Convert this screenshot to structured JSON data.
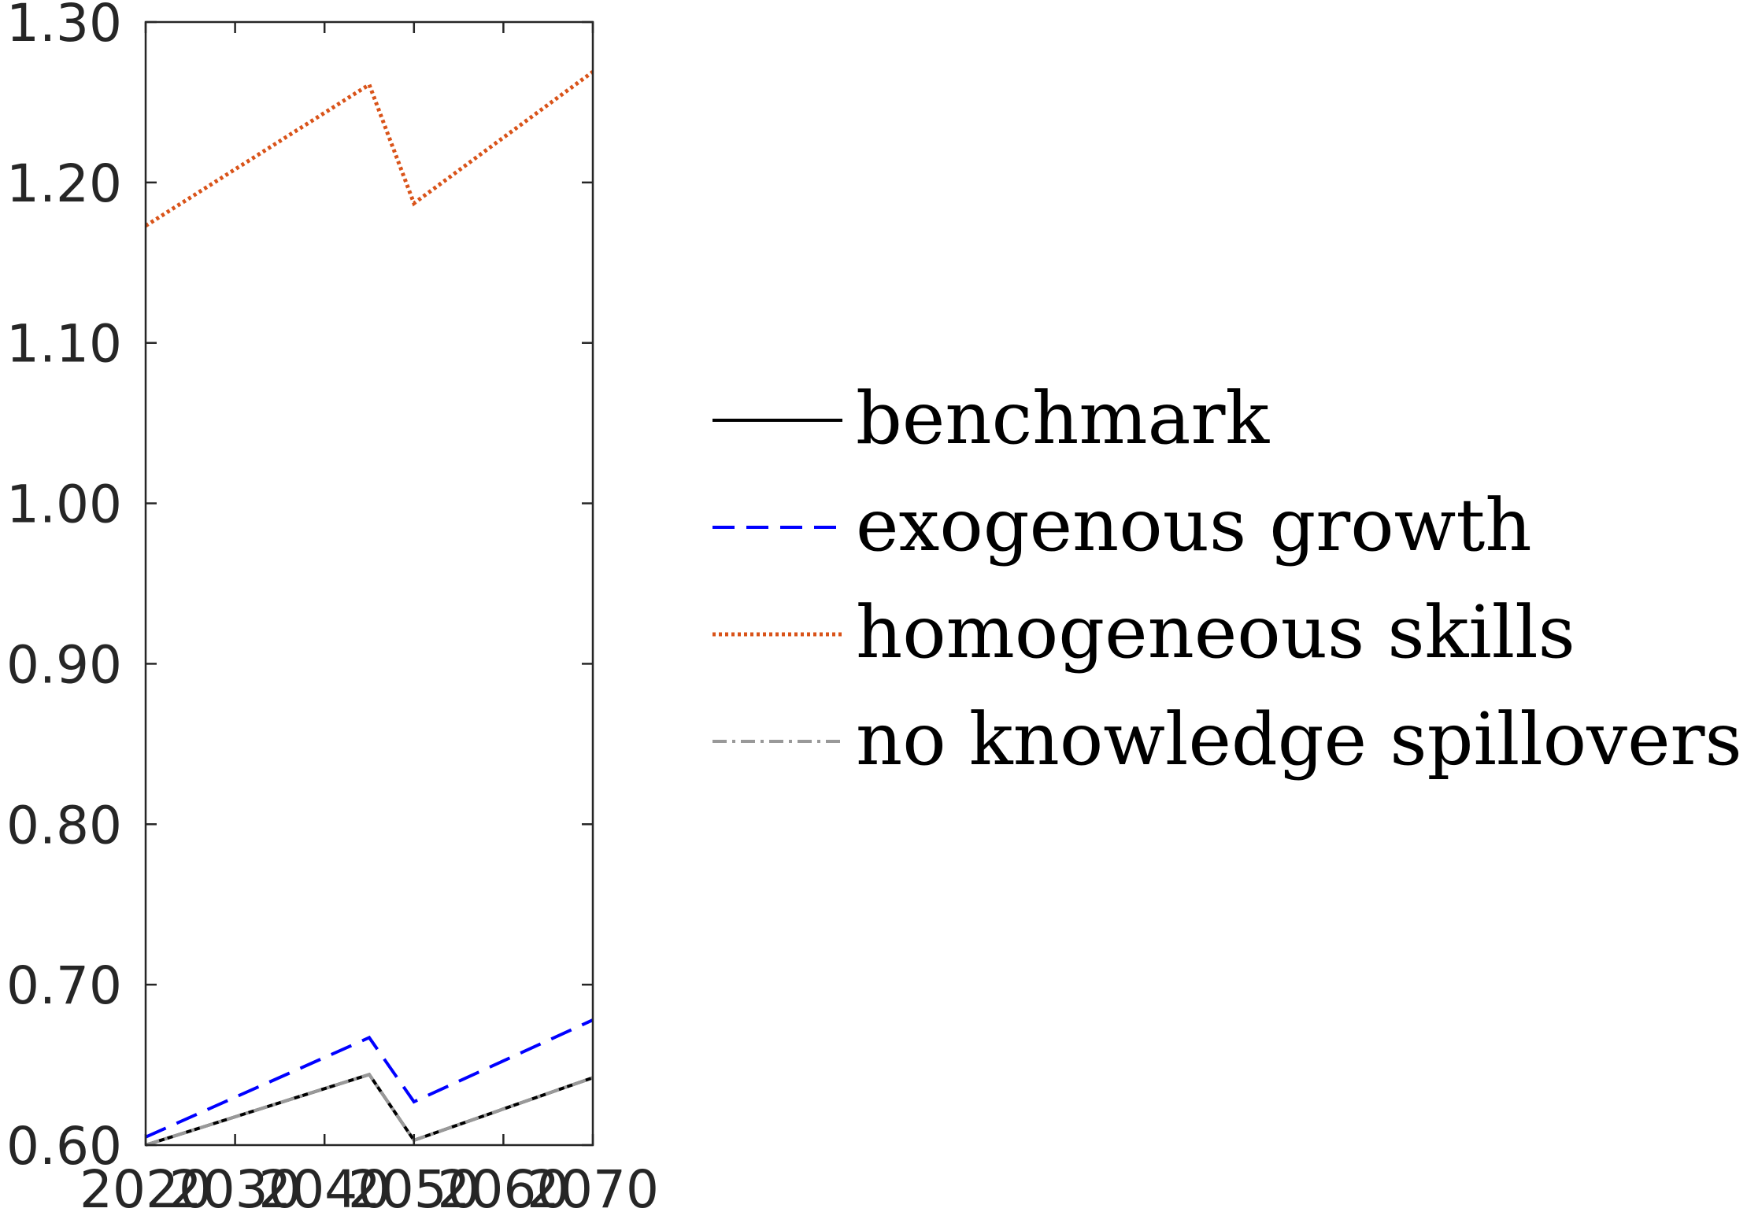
{
  "chart_data": {
    "type": "line",
    "title": "",
    "xlabel": "",
    "ylabel": "",
    "xlim": [
      2020,
      2070
    ],
    "ylim": [
      0.6,
      1.3
    ],
    "x_ticks": [
      "2020",
      "2030",
      "2040",
      "2050",
      "2060",
      "2070"
    ],
    "y_ticks": [
      "0.60",
      "0.70",
      "0.80",
      "0.90",
      "1.00",
      "1.10",
      "1.20",
      "1.30"
    ],
    "grid": false,
    "legend_placement": "outside-right",
    "x": [
      2020,
      2045,
      2050,
      2070
    ],
    "series": [
      {
        "name": "benchmark",
        "values": [
          0.6,
          0.644,
          0.603,
          0.642
        ],
        "color": "#000000",
        "style": "solid"
      },
      {
        "name": "exogenous growth",
        "values": [
          0.605,
          0.667,
          0.627,
          0.678
        ],
        "color": "#0000ff",
        "style": "dashed"
      },
      {
        "name": "homogeneous skills",
        "values": [
          1.173,
          1.261,
          1.187,
          1.269
        ],
        "color": "#d95319",
        "style": "dotted"
      },
      {
        "name": "no knowledge spillovers",
        "values": [
          0.6,
          0.644,
          0.603,
          0.642
        ],
        "color": "#999999",
        "style": "dash-dot"
      }
    ]
  }
}
